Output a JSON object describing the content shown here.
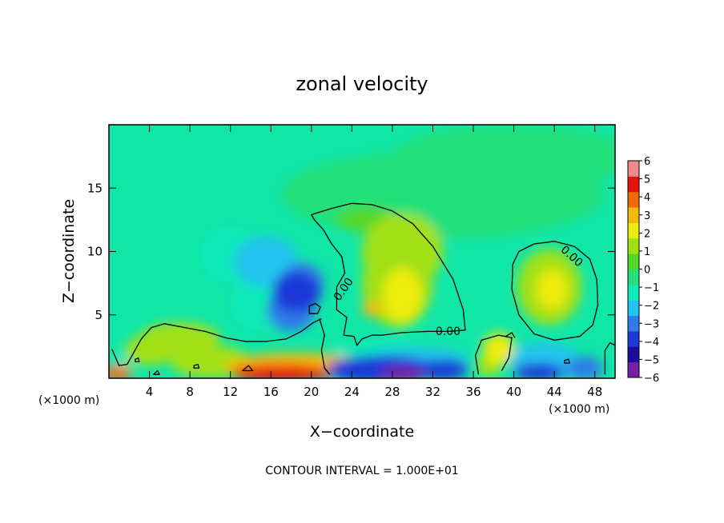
{
  "chart_data": {
    "type": "heatmap",
    "title": "zonal velocity",
    "xlabel": "X−coordinate",
    "ylabel": "Z−coordinate",
    "x_unit_left": "(×1000 m)",
    "x_unit_right": "(×1000 m)",
    "xlim": [
      0,
      50
    ],
    "ylim": [
      0,
      20
    ],
    "x_ticks": [
      {
        "value": 4,
        "label": "4"
      },
      {
        "value": 8,
        "label": "8"
      },
      {
        "value": 12,
        "label": "12"
      },
      {
        "value": 16,
        "label": "16"
      },
      {
        "value": 20,
        "label": "20"
      },
      {
        "value": 24,
        "label": "24"
      },
      {
        "value": 28,
        "label": "28"
      },
      {
        "value": 32,
        "label": "32"
      },
      {
        "value": 36,
        "label": "36"
      },
      {
        "value": 40,
        "label": "40"
      },
      {
        "value": 44,
        "label": "44"
      },
      {
        "value": 48,
        "label": "48"
      }
    ],
    "y_ticks": [
      {
        "value": 5,
        "label": "5"
      },
      {
        "value": 10,
        "label": "10"
      },
      {
        "value": 15,
        "label": "15"
      }
    ],
    "colorbar": {
      "min": -6,
      "max": 6,
      "labels": [
        {
          "value": 6,
          "label": "6"
        },
        {
          "value": 5,
          "label": "5"
        },
        {
          "value": 4,
          "label": "4"
        },
        {
          "value": 3,
          "label": "3"
        },
        {
          "value": 2,
          "label": "2"
        },
        {
          "value": 1,
          "label": "1"
        },
        {
          "value": 0,
          "label": "0"
        },
        {
          "value": -1,
          "label": "−1"
        },
        {
          "value": -2,
          "label": "−2"
        },
        {
          "value": -3,
          "label": "−3"
        },
        {
          "value": -4,
          "label": "−4"
        },
        {
          "value": -5,
          "label": "−5"
        },
        {
          "value": -6,
          "label": "−6"
        }
      ],
      "colors": [
        "#7a1fa2",
        "#1a0d9c",
        "#1d39d8",
        "#2f7be8",
        "#22c4ef",
        "#10e8b8",
        "#24e07a",
        "#52d829",
        "#a2e012",
        "#ecec10",
        "#f4b90a",
        "#f06a08",
        "#e8140c",
        "#f08a8a"
      ]
    },
    "contour_labels": [
      {
        "text": "0.00",
        "x": 23.2,
        "y": 7.0,
        "rotate": -55
      },
      {
        "text": "0.00",
        "x": 33.5,
        "y": 3.65,
        "rotate": 0
      },
      {
        "text": "0.00",
        "x": 45.7,
        "y": 9.6,
        "rotate": 42
      }
    ],
    "zero_contours": [
      {
        "closed": true,
        "points": [
          [
            20.0,
            12.9
          ],
          [
            22.0,
            13.4
          ],
          [
            24.0,
            13.8
          ],
          [
            26.0,
            13.7
          ],
          [
            28.0,
            13.2
          ],
          [
            30.0,
            12.2
          ],
          [
            32.0,
            10.4
          ],
          [
            34.0,
            7.8
          ],
          [
            35.0,
            5.4
          ],
          [
            35.2,
            3.8
          ],
          [
            33.5,
            3.7
          ],
          [
            31.5,
            3.7
          ],
          [
            29.0,
            3.6
          ],
          [
            27.0,
            3.4
          ],
          [
            26.0,
            3.4
          ],
          [
            25.0,
            3.1
          ],
          [
            24.5,
            2.6
          ],
          [
            24.2,
            3.3
          ],
          [
            23.2,
            3.4
          ],
          [
            23.5,
            4.8
          ],
          [
            22.5,
            5.4
          ],
          [
            22.5,
            7.2
          ],
          [
            23.3,
            8.3
          ],
          [
            23.0,
            9.6
          ],
          [
            22.0,
            10.6
          ],
          [
            21.2,
            11.7
          ],
          [
            20.3,
            12.5
          ]
        ]
      },
      {
        "closed": true,
        "points": [
          [
            40.5,
            10.0
          ],
          [
            42.0,
            10.6
          ],
          [
            44.0,
            10.8
          ],
          [
            46.0,
            10.4
          ],
          [
            47.5,
            9.4
          ],
          [
            48.2,
            7.8
          ],
          [
            48.3,
            5.8
          ],
          [
            47.8,
            4.2
          ],
          [
            46.5,
            3.3
          ],
          [
            44.0,
            3.0
          ],
          [
            42.0,
            3.5
          ],
          [
            40.5,
            5.0
          ],
          [
            39.8,
            7.0
          ],
          [
            39.9,
            9.0
          ]
        ]
      },
      {
        "closed": false,
        "points": [
          [
            0.3,
            2.3
          ],
          [
            1.0,
            1.0
          ],
          [
            1.8,
            1.1
          ],
          [
            2.5,
            2.1
          ],
          [
            3.2,
            3.1
          ],
          [
            4.2,
            4.0
          ],
          [
            5.5,
            4.3
          ],
          [
            7.5,
            4.0
          ],
          [
            9.5,
            3.7
          ],
          [
            11.5,
            3.2
          ],
          [
            13.5,
            2.9
          ],
          [
            15.5,
            2.9
          ],
          [
            17.5,
            3.1
          ],
          [
            19.0,
            3.7
          ],
          [
            20.2,
            4.4
          ],
          [
            21.0,
            4.7
          ]
        ]
      },
      {
        "closed": false,
        "points": [
          [
            20.8,
            4.7
          ],
          [
            21.3,
            3.4
          ],
          [
            21.0,
            2.2
          ],
          [
            21.3,
            0.8
          ],
          [
            21.8,
            0.3
          ]
        ]
      },
      {
        "closed": true,
        "points": [
          [
            19.8,
            5.1
          ],
          [
            20.6,
            5.1
          ],
          [
            20.9,
            5.6
          ],
          [
            20.4,
            5.9
          ],
          [
            19.8,
            5.7
          ]
        ]
      },
      {
        "closed": false,
        "points": [
          [
            36.5,
            0.3
          ],
          [
            36.2,
            1.8
          ],
          [
            36.8,
            3.0
          ],
          [
            38.5,
            3.4
          ],
          [
            39.8,
            3.2
          ],
          [
            39.5,
            1.6
          ],
          [
            38.8,
            0.6
          ]
        ]
      },
      {
        "closed": false,
        "points": [
          [
            39.2,
            3.3
          ],
          [
            39.8,
            3.6
          ],
          [
            40.1,
            3.2
          ]
        ]
      },
      {
        "closed": false,
        "points": [
          [
            49.0,
            0.3
          ],
          [
            49.0,
            2.2
          ],
          [
            49.5,
            2.8
          ],
          [
            50.0,
            2.6
          ]
        ]
      },
      {
        "closed": true,
        "points": [
          [
            2.6,
            1.3
          ],
          [
            3.0,
            1.3
          ],
          [
            2.9,
            1.6
          ],
          [
            2.6,
            1.5
          ]
        ]
      },
      {
        "closed": true,
        "points": [
          [
            8.4,
            0.8
          ],
          [
            8.9,
            0.8
          ],
          [
            8.8,
            1.1
          ],
          [
            8.4,
            1.0
          ]
        ]
      },
      {
        "closed": true,
        "points": [
          [
            13.2,
            0.6
          ],
          [
            14.2,
            0.6
          ],
          [
            13.8,
            1.0
          ]
        ]
      },
      {
        "closed": true,
        "points": [
          [
            4.4,
            0.3
          ],
          [
            5.0,
            0.3
          ],
          [
            4.8,
            0.6
          ]
        ]
      },
      {
        "closed": true,
        "points": [
          [
            45.0,
            1.2
          ],
          [
            45.5,
            1.2
          ],
          [
            45.4,
            1.5
          ],
          [
            45.0,
            1.4
          ]
        ]
      }
    ],
    "blobs": [
      {
        "x": 18.5,
        "y": 6.8,
        "rx": 2.4,
        "ry": 1.6,
        "value": -4.0
      },
      {
        "x": 18.0,
        "y": 5.4,
        "rx": 2.4,
        "ry": 1.7,
        "value": -3.0
      },
      {
        "x": 19.0,
        "y": 7.5,
        "rx": 2.2,
        "ry": 1.6,
        "value": -3.2
      },
      {
        "x": 15.5,
        "y": 9.2,
        "rx": 3.2,
        "ry": 2.0,
        "value": -2.2
      },
      {
        "x": 12.0,
        "y": 9.8,
        "rx": 2.8,
        "ry": 2.2,
        "value": -1.6
      },
      {
        "x": 15.0,
        "y": 6.0,
        "rx": 3.0,
        "ry": 2.2,
        "value": -1.3
      },
      {
        "x": 18.5,
        "y": 1.0,
        "rx": 7.0,
        "ry": 1.0,
        "value": 3.0
      },
      {
        "x": 17.0,
        "y": 0.4,
        "rx": 5.0,
        "ry": 0.7,
        "value": 4.5
      },
      {
        "x": 10.0,
        "y": 1.3,
        "rx": 4.0,
        "ry": 1.3,
        "value": 1.6
      },
      {
        "x": 7.0,
        "y": 3.2,
        "rx": 4.0,
        "ry": 1.2,
        "value": 1.1
      },
      {
        "x": 4.0,
        "y": 2.2,
        "rx": 2.5,
        "ry": 1.2,
        "value": 1.4
      },
      {
        "x": 0.8,
        "y": 0.4,
        "rx": 1.5,
        "ry": 0.6,
        "value": 3.5
      },
      {
        "x": 28.5,
        "y": 7.5,
        "rx": 3.5,
        "ry": 3.5,
        "value": 1.6
      },
      {
        "x": 29.0,
        "y": 6.5,
        "rx": 2.0,
        "ry": 2.2,
        "value": 2.2
      },
      {
        "x": 26.0,
        "y": 5.5,
        "rx": 1.0,
        "ry": 0.6,
        "value": 2.6
      },
      {
        "x": 29.0,
        "y": 10.0,
        "rx": 4.0,
        "ry": 3.0,
        "value": 0.9
      },
      {
        "x": 25.5,
        "y": 12.5,
        "rx": 3.0,
        "ry": 1.0,
        "value": 0.6
      },
      {
        "x": 43.5,
        "y": 7.2,
        "rx": 3.2,
        "ry": 3.0,
        "value": 1.6
      },
      {
        "x": 43.8,
        "y": 7.0,
        "rx": 1.6,
        "ry": 1.6,
        "value": 2.1
      },
      {
        "x": 27.0,
        "y": 0.7,
        "rx": 5.5,
        "ry": 1.1,
        "value": -4.2
      },
      {
        "x": 29.0,
        "y": 0.3,
        "rx": 2.2,
        "ry": 0.6,
        "value": -5.6
      },
      {
        "x": 30.5,
        "y": 1.4,
        "rx": 5.0,
        "ry": 1.0,
        "value": -2.5
      },
      {
        "x": 33.0,
        "y": 0.7,
        "rx": 2.5,
        "ry": 0.8,
        "value": -3.5
      },
      {
        "x": 27.0,
        "y": 2.2,
        "rx": 4.0,
        "ry": 0.7,
        "value": -1.2
      },
      {
        "x": 23.5,
        "y": 1.5,
        "rx": 1.5,
        "ry": 1.2,
        "value": -1.5
      },
      {
        "x": 43.0,
        "y": 1.3,
        "rx": 3.5,
        "ry": 1.5,
        "value": -2.2
      },
      {
        "x": 42.5,
        "y": 0.5,
        "rx": 2.5,
        "ry": 0.7,
        "value": -4.0
      },
      {
        "x": 47.0,
        "y": 0.8,
        "rx": 1.8,
        "ry": 0.9,
        "value": -3.0
      },
      {
        "x": 38.5,
        "y": 2.3,
        "rx": 1.6,
        "ry": 1.3,
        "value": 2.0
      },
      {
        "x": 37.5,
        "y": 1.0,
        "rx": 1.2,
        "ry": 0.9,
        "value": 1.2
      },
      {
        "x": 1.5,
        "y": 1.2,
        "rx": 1.0,
        "ry": 0.9,
        "value": -1.2
      },
      {
        "x": 33.0,
        "y": 14.5,
        "rx": 16.0,
        "ry": 3.5,
        "value": -0.5
      },
      {
        "x": 40.0,
        "y": 17.5,
        "rx": 12.0,
        "ry": 2.5,
        "value": -0.4
      }
    ]
  }
}
